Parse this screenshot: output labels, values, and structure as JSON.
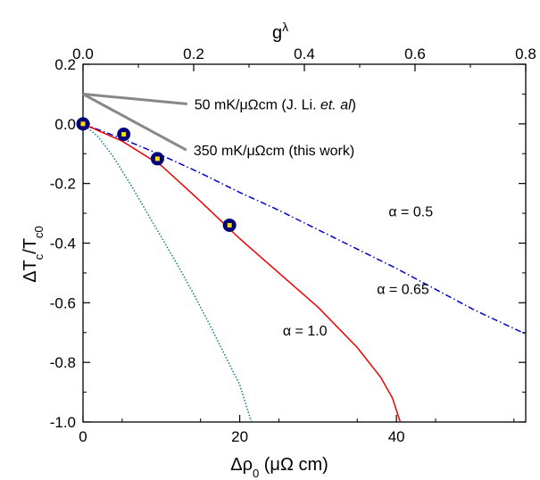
{
  "chart_data": {
    "type": "line",
    "title": "",
    "xlabel": "Δρ₀ (μΩ cm)",
    "ylabel": "ΔT_c/T_c0",
    "x2label": "g^λ",
    "xlim": [
      0,
      56.5
    ],
    "ylim": [
      -1.0,
      0.2
    ],
    "x2lim": [
      0,
      0.8
    ],
    "xticks": [
      0,
      20,
      40
    ],
    "xtick_labels": [
      "0",
      "20",
      "40"
    ],
    "x2ticks": [
      0.0,
      0.2,
      0.4,
      0.6,
      0.8
    ],
    "x2tick_labels": [
      "0.0",
      "0.2",
      "0.4",
      "0.6",
      "0.8"
    ],
    "yticks": [
      0.2,
      0.0,
      -0.2,
      -0.4,
      -0.6,
      -0.8,
      -1.0
    ],
    "ytick_labels": [
      "0.2",
      "0.0",
      "-0.2",
      "-0.4",
      "-0.6",
      "-0.8",
      "-1.0"
    ],
    "grid": false,
    "series": [
      {
        "name": "α = 0.5",
        "style": "dash-dot",
        "color": "#0000cc",
        "x": [
          0,
          5,
          10,
          15,
          20,
          25,
          30,
          35,
          40,
          45,
          50,
          56.5
        ],
        "y": [
          0,
          -0.05,
          -0.105,
          -0.165,
          -0.23,
          -0.29,
          -0.355,
          -0.42,
          -0.485,
          -0.555,
          -0.625,
          -0.705
        ]
      },
      {
        "name": "α = 0.65",
        "style": "solid",
        "color": "#ee0000",
        "x": [
          0,
          5,
          10,
          15,
          20,
          25,
          30,
          35,
          38,
          39.5,
          40.5
        ],
        "y": [
          0,
          -0.058,
          -0.14,
          -0.26,
          -0.385,
          -0.5,
          -0.615,
          -0.75,
          -0.85,
          -0.92,
          -1.0
        ]
      },
      {
        "name": "α = 1.0",
        "style": "dotted",
        "color": "#008080",
        "x": [
          0,
          2,
          4,
          6,
          8,
          10,
          12,
          14,
          16,
          18,
          20,
          21.5
        ],
        "y": [
          0,
          -0.045,
          -0.115,
          -0.2,
          -0.29,
          -0.38,
          -0.47,
          -0.565,
          -0.665,
          -0.77,
          -0.875,
          -1.0
        ]
      }
    ],
    "reference_lines": [
      {
        "label": "50 mK/μΩcm (J. Li.",
        "label_italic": "et. al",
        "label_end": ")",
        "color": "#888888",
        "x": [
          0,
          13.3
        ],
        "y": [
          0.1,
          0.067
        ]
      },
      {
        "label": "350 mK/μΩcm (this work)",
        "color": "#888888",
        "x": [
          0,
          13.2
        ],
        "y": [
          0.1,
          -0.088
        ]
      }
    ],
    "points": {
      "color": "#00007a",
      "center_color": "#ffe000",
      "x": [
        0,
        5.2,
        9.5,
        18.7
      ],
      "y": [
        0,
        -0.035,
        -0.117,
        -0.34
      ]
    },
    "annotations": [
      {
        "text": "α = 0.5",
        "x": 39,
        "y": -0.31
      },
      {
        "text": "α = 0.65",
        "x": 37.5,
        "y": -0.57
      },
      {
        "text": "α = 1.0",
        "x": 25.5,
        "y": -0.71
      }
    ]
  }
}
